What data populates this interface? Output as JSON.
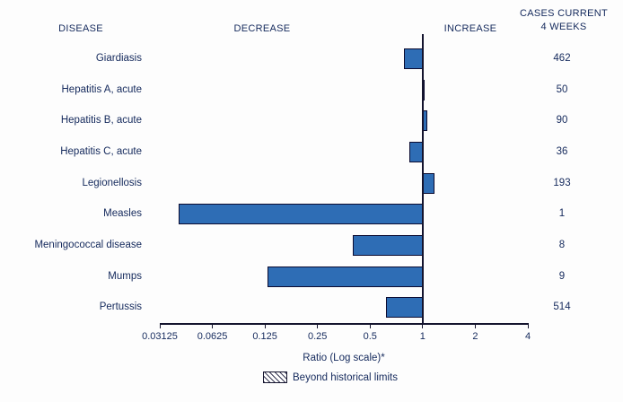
{
  "header": {
    "disease_col": "DISEASE",
    "decrease": "DECREASE",
    "increase": "INCREASE",
    "cases_line1": "CASES CURRENT",
    "cases_line2": "4 WEEKS"
  },
  "chart_data": {
    "type": "bar",
    "orientation": "horizontal",
    "scale": "log",
    "log_base": 2,
    "baseline": 1,
    "xlim": [
      0.03125,
      4
    ],
    "x_ticks": [
      0.03125,
      0.0625,
      0.125,
      0.25,
      0.5,
      1,
      2,
      4
    ],
    "x_tick_labels": [
      "0.03125",
      "0.0625",
      "0.125",
      "0.25",
      "0.5",
      "1",
      "2",
      "4"
    ],
    "xlabel": "Ratio (Log scale)*",
    "legend": {
      "label": "Beyond historical limits",
      "pattern": "diagonal-hatch"
    },
    "colors": {
      "bar_fill": "#2e6db5",
      "bar_border": "#0b0b30",
      "axis": "#14142e",
      "text": "#14295c"
    },
    "rows": [
      {
        "disease": "Giardiasis",
        "ratio": 0.78,
        "cases": 462,
        "beyond_limits": false
      },
      {
        "disease": "Hepatitis A, acute",
        "ratio": 1.0,
        "cases": 50,
        "beyond_limits": false
      },
      {
        "disease": "Hepatitis B, acute",
        "ratio": 1.06,
        "cases": 90,
        "beyond_limits": false
      },
      {
        "disease": "Hepatitis C, acute",
        "ratio": 0.84,
        "cases": 36,
        "beyond_limits": false
      },
      {
        "disease": "Legionellosis",
        "ratio": 1.17,
        "cases": 193,
        "beyond_limits": false
      },
      {
        "disease": "Measles",
        "ratio": 0.04,
        "cases": 1,
        "beyond_limits": false
      },
      {
        "disease": "Meningococcal disease",
        "ratio": 0.4,
        "cases": 8,
        "beyond_limits": false
      },
      {
        "disease": "Mumps",
        "ratio": 0.13,
        "cases": 9,
        "beyond_limits": false
      },
      {
        "disease": "Pertussis",
        "ratio": 0.62,
        "cases": 514,
        "beyond_limits": false
      }
    ]
  }
}
